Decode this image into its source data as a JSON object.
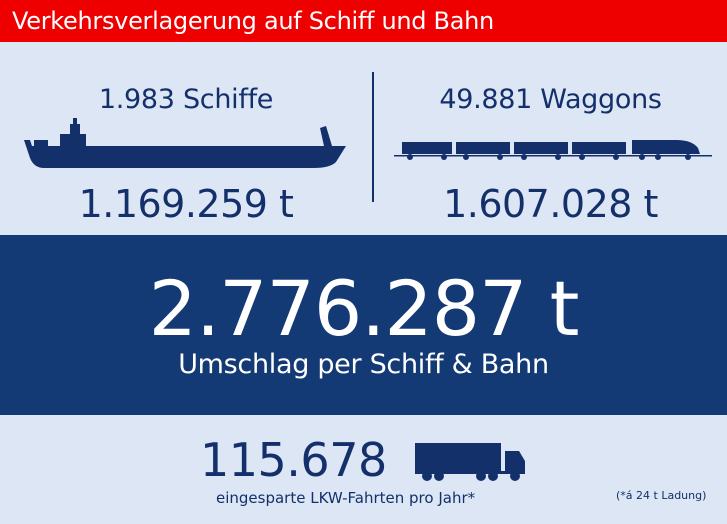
{
  "title": "Verkehrsverlagerung auf Schiff und Bahn",
  "ship": {
    "count": "1.983 Schiffe",
    "tons": "1.169.259 t",
    "icon": "ship-icon"
  },
  "rail": {
    "count": "49.881 Waggons",
    "tons": "1.607.028 t",
    "icon": "train-icon"
  },
  "total": {
    "value": "2.776.287 t",
    "label": "Umschlag per Schiff & Bahn"
  },
  "trucks": {
    "value": "115.678",
    "label": "eingesparte LKW-Fahrten pro Jahr*",
    "icon": "truck-icon"
  },
  "footnote": "(*á 24 t Ladung)",
  "colors": {
    "title_bg": "#ee0000",
    "panel_bg": "#dce6f4",
    "band_bg": "#133a74",
    "text": "#14306b"
  }
}
